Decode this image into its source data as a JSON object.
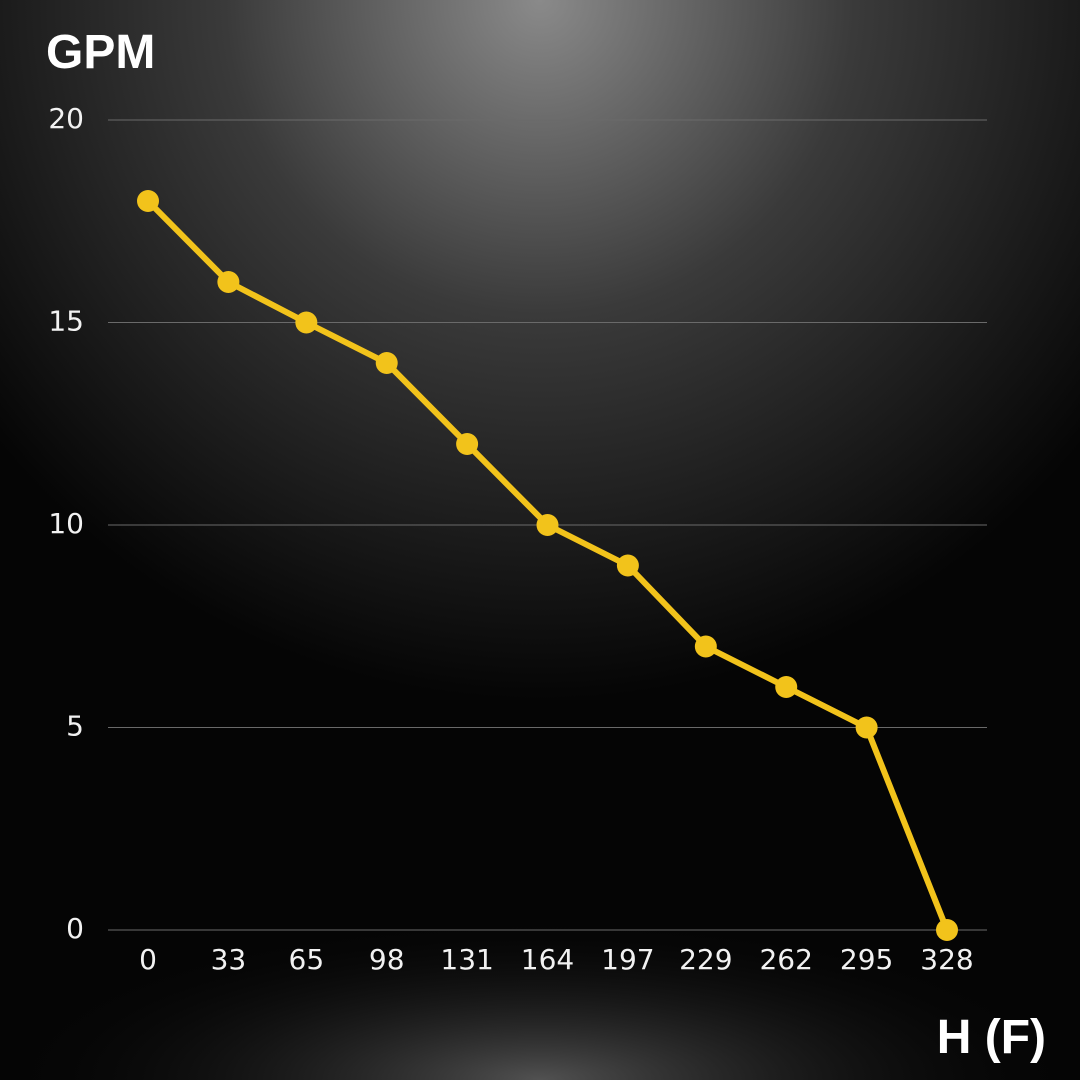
{
  "chart_data": {
    "type": "line",
    "y_label": "GPM",
    "x_label": "H (F)",
    "x": [
      0,
      33,
      65,
      98,
      131,
      164,
      197,
      229,
      262,
      295,
      328
    ],
    "series": [
      {
        "color": "#f2c31b",
        "values": [
          18,
          16,
          15,
          14,
          12,
          10,
          9,
          7,
          6,
          5,
          0
        ]
      }
    ],
    "xlim": [
      0,
      328
    ],
    "xticks": [
      0,
      33,
      65,
      98,
      131,
      164,
      197,
      229,
      262,
      295,
      328
    ],
    "ylim": [
      0,
      20
    ],
    "yticks": [
      0,
      5,
      10,
      15,
      20
    ],
    "grid": true
  }
}
